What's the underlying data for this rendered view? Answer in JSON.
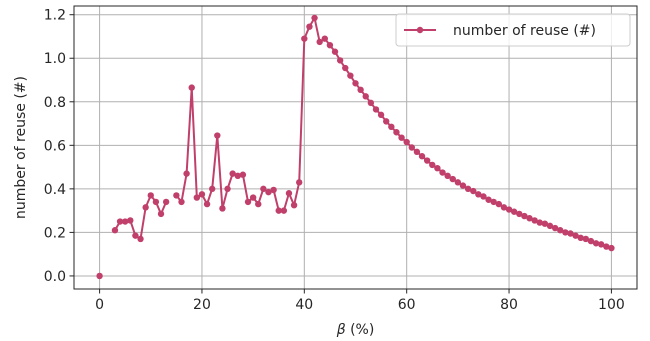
{
  "chart_data": {
    "type": "line",
    "title": "",
    "xlabel_symbol": "β",
    "xlabel_unit": " (%)",
    "ylabel": "number of reuse (#)",
    "xlim": [
      -5,
      105
    ],
    "ylim": [
      -0.06,
      1.24
    ],
    "xticks": [
      0,
      20,
      40,
      60,
      80,
      100
    ],
    "yticks": [
      0.0,
      0.2,
      0.4,
      0.6,
      0.8,
      1.0,
      1.2
    ],
    "xtick_labels": [
      "0",
      "20",
      "40",
      "60",
      "80",
      "100"
    ],
    "ytick_labels": [
      "0.0",
      "0.2",
      "0.4",
      "0.6",
      "0.8",
      "1.0",
      "1.2"
    ],
    "grid": true,
    "legend_position": "top-right",
    "series": [
      {
        "name": "number of reuse (#)",
        "color": "#c0406b",
        "marker": "circle",
        "segments": [
          [
            [
              0,
              0.0
            ]
          ],
          [
            [
              3,
              0.21
            ],
            [
              4,
              0.25
            ],
            [
              5,
              0.25
            ],
            [
              6,
              0.255
            ],
            [
              7,
              0.185
            ],
            [
              8,
              0.17
            ],
            [
              9,
              0.315
            ],
            [
              10,
              0.37
            ],
            [
              11,
              0.34
            ],
            [
              12,
              0.285
            ],
            [
              13,
              0.34
            ]
          ],
          [
            [
              15,
              0.37
            ],
            [
              16,
              0.34
            ],
            [
              17,
              0.47
            ],
            [
              18,
              0.865
            ],
            [
              19,
              0.36
            ],
            [
              20,
              0.375
            ],
            [
              21,
              0.33
            ],
            [
              22,
              0.4
            ],
            [
              23,
              0.645
            ],
            [
              24,
              0.31
            ],
            [
              25,
              0.4
            ],
            [
              26,
              0.47
            ],
            [
              27,
              0.46
            ],
            [
              28,
              0.465
            ],
            [
              29,
              0.34
            ],
            [
              30,
              0.36
            ],
            [
              31,
              0.33
            ],
            [
              32,
              0.4
            ],
            [
              33,
              0.385
            ],
            [
              34,
              0.395
            ],
            [
              35,
              0.3
            ],
            [
              36,
              0.3
            ],
            [
              37,
              0.38
            ],
            [
              38,
              0.325
            ],
            [
              39,
              0.43
            ],
            [
              40,
              1.09
            ],
            [
              41,
              1.145
            ],
            [
              42,
              1.185
            ],
            [
              43,
              1.075
            ],
            [
              44,
              1.09
            ],
            [
              45,
              1.06
            ],
            [
              46,
              1.03
            ],
            [
              47,
              0.99
            ],
            [
              48,
              0.955
            ],
            [
              49,
              0.92
            ],
            [
              50,
              0.885
            ],
            [
              51,
              0.855
            ],
            [
              52,
              0.825
            ],
            [
              53,
              0.795
            ],
            [
              54,
              0.765
            ],
            [
              55,
              0.74
            ],
            [
              56,
              0.71
            ],
            [
              57,
              0.685
            ],
            [
              58,
              0.66
            ],
            [
              59,
              0.635
            ],
            [
              60,
              0.615
            ],
            [
              61,
              0.59
            ],
            [
              62,
              0.57
            ],
            [
              63,
              0.55
            ],
            [
              64,
              0.53
            ],
            [
              65,
              0.51
            ],
            [
              66,
              0.495
            ],
            [
              67,
              0.475
            ],
            [
              68,
              0.46
            ],
            [
              69,
              0.445
            ],
            [
              70,
              0.43
            ],
            [
              71,
              0.415
            ],
            [
              72,
              0.4
            ],
            [
              73,
              0.39
            ],
            [
              74,
              0.375
            ],
            [
              75,
              0.365
            ],
            [
              76,
              0.35
            ],
            [
              77,
              0.34
            ],
            [
              78,
              0.33
            ],
            [
              79,
              0.315
            ],
            [
              80,
              0.305
            ],
            [
              81,
              0.295
            ],
            [
              82,
              0.285
            ],
            [
              83,
              0.275
            ],
            [
              84,
              0.265
            ],
            [
              85,
              0.255
            ],
            [
              86,
              0.245
            ],
            [
              87,
              0.24
            ],
            [
              88,
              0.23
            ],
            [
              89,
              0.22
            ],
            [
              90,
              0.21
            ],
            [
              91,
              0.2
            ],
            [
              92,
              0.195
            ],
            [
              93,
              0.185
            ],
            [
              94,
              0.175
            ],
            [
              95,
              0.17
            ],
            [
              96,
              0.16
            ],
            [
              97,
              0.15
            ],
            [
              98,
              0.145
            ],
            [
              99,
              0.135
            ],
            [
              100,
              0.128
            ]
          ]
        ]
      }
    ]
  }
}
